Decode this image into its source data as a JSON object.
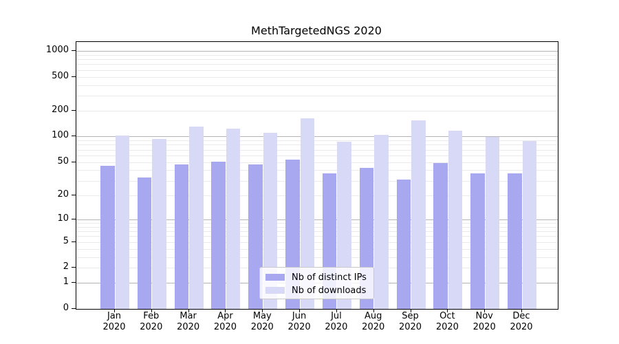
{
  "chart_data": {
    "type": "bar",
    "title": "MethTargetedNGS 2020",
    "categories": [
      "Jan",
      "Feb",
      "Mar",
      "Apr",
      "May",
      "Jun",
      "Jul",
      "Aug",
      "Sep",
      "Oct",
      "Nov",
      "Dec"
    ],
    "year_label": "2020",
    "series": [
      {
        "name": "Nb of distinct IPs",
        "color": "#a8a8f0",
        "values": [
          45,
          33,
          47,
          51,
          47,
          54,
          37,
          43,
          31,
          49,
          37,
          37
        ]
      },
      {
        "name": "Nb of downloads",
        "color": "#d8d8f7",
        "values": [
          102,
          94,
          131,
          123,
          111,
          163,
          87,
          105,
          155,
          117,
          100,
          89
        ]
      }
    ],
    "yscale": "log1p",
    "yticks": [
      0,
      1,
      2,
      5,
      10,
      20,
      50,
      100,
      200,
      500,
      1000
    ],
    "ylim": [
      0,
      1258
    ],
    "grid": "on",
    "legend_position": "lower-center"
  }
}
